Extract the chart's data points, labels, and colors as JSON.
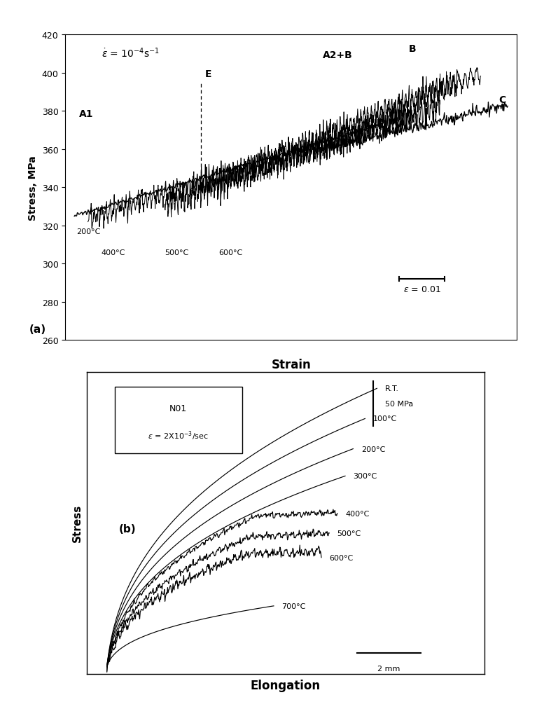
{
  "fig_width": 7.77,
  "fig_height": 10.03,
  "panel_a": {
    "ylabel": "Stress, MPa",
    "xlabel": "Strain",
    "ylim": [
      260,
      420
    ],
    "yticks": [
      260,
      280,
      300,
      320,
      340,
      360,
      380,
      400,
      420
    ],
    "label": "(a)"
  },
  "panel_b": {
    "ylabel": "Stress",
    "xlabel": "Elongation",
    "box_text": "N01\nε = 2X10⁻³/sec",
    "scale_bar_stress": "50 MPa",
    "scale_bar_length": "2 mm",
    "temperatures": [
      "R.T.",
      "100°C",
      "200°C",
      "300°C",
      "400°C",
      "500°C",
      "600°C",
      "700°C"
    ],
    "label": "(b)"
  }
}
